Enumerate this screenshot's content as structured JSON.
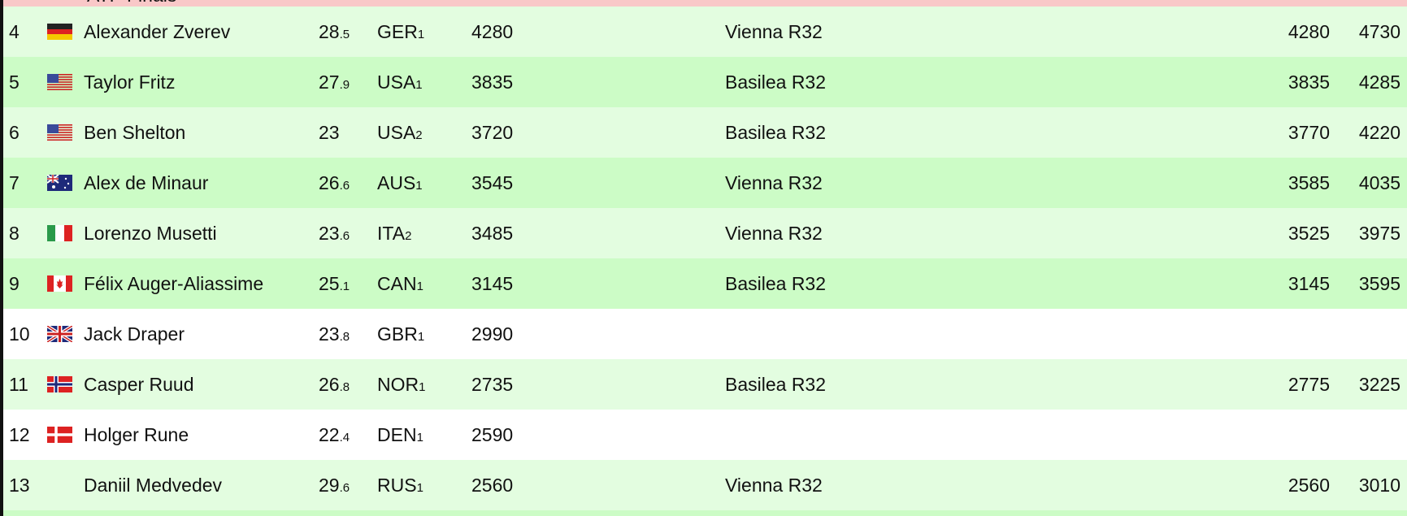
{
  "header_row": {
    "label": "ATP Finals",
    "color": "#f9c8c8"
  },
  "colors": {
    "row_light": "#e3fde0",
    "row_dark": "#ccfcc6",
    "row_white": "#ffffff"
  },
  "rows": [
    {
      "rank": "4",
      "flag": "germany-flag",
      "name": "Alexander Zverev",
      "age": "28",
      "age_dec": ".5",
      "country": "GER",
      "country_rank": "1",
      "points": "4280",
      "tournament": "Vienna R32",
      "min": "4280",
      "max": "4730",
      "style": "a"
    },
    {
      "rank": "5",
      "flag": "usa-flag",
      "name": "Taylor Fritz",
      "age": "27",
      "age_dec": ".9",
      "country": "USA",
      "country_rank": "1",
      "points": "3835",
      "tournament": "Basilea R32",
      "min": "3835",
      "max": "4285",
      "style": "b"
    },
    {
      "rank": "6",
      "flag": "usa-flag",
      "name": "Ben Shelton",
      "age": "23",
      "age_dec": "",
      "country": "USA",
      "country_rank": "2",
      "points": "3720",
      "tournament": "Basilea R32",
      "min": "3770",
      "max": "4220",
      "style": "a"
    },
    {
      "rank": "7",
      "flag": "australia-flag",
      "name": "Alex de Minaur",
      "age": "26",
      "age_dec": ".6",
      "country": "AUS",
      "country_rank": "1",
      "points": "3545",
      "tournament": "Vienna R32",
      "min": "3585",
      "max": "4035",
      "style": "b"
    },
    {
      "rank": "8",
      "flag": "italy-flag",
      "name": "Lorenzo Musetti",
      "age": "23",
      "age_dec": ".6",
      "country": "ITA",
      "country_rank": "2",
      "points": "3485",
      "tournament": "Vienna R32",
      "min": "3525",
      "max": "3975",
      "style": "a"
    },
    {
      "rank": "9",
      "flag": "canada-flag",
      "name": "Félix Auger-Aliassime",
      "age": "25",
      "age_dec": ".1",
      "country": "CAN",
      "country_rank": "1",
      "points": "3145",
      "tournament": "Basilea R32",
      "min": "3145",
      "max": "3595",
      "style": "b"
    },
    {
      "rank": "10",
      "flag": "uk-flag",
      "name": "Jack Draper",
      "age": "23",
      "age_dec": ".8",
      "country": "GBR",
      "country_rank": "1",
      "points": "2990",
      "tournament": "",
      "min": "",
      "max": "",
      "style": "w"
    },
    {
      "rank": "11",
      "flag": "norway-flag",
      "name": "Casper Ruud",
      "age": "26",
      "age_dec": ".8",
      "country": "NOR",
      "country_rank": "1",
      "points": "2735",
      "tournament": "Basilea R32",
      "min": "2775",
      "max": "3225",
      "style": "a"
    },
    {
      "rank": "12",
      "flag": "denmark-flag",
      "name": "Holger Rune",
      "age": "22",
      "age_dec": ".4",
      "country": "DEN",
      "country_rank": "1",
      "points": "2590",
      "tournament": "",
      "min": "",
      "max": "",
      "style": "w"
    },
    {
      "rank": "13",
      "flag": "",
      "name": "Daniil Medvedev",
      "age": "29",
      "age_dec": ".6",
      "country": "RUS",
      "country_rank": "1",
      "points": "2560",
      "tournament": "Vienna R32",
      "min": "2560",
      "max": "3010",
      "style": "a"
    }
  ]
}
